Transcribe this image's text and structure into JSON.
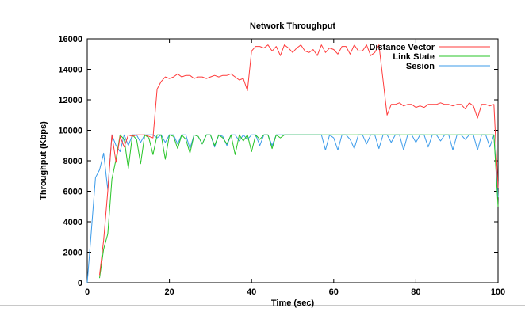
{
  "chart_data": {
    "type": "line",
    "title": "Network Throughput",
    "xlabel": "Time (sec)",
    "ylabel": "Throughput (Kbps)",
    "xlim": [
      0,
      100
    ],
    "ylim": [
      0,
      16000
    ],
    "xticks": [
      0,
      20,
      40,
      60,
      80,
      100
    ],
    "yticks": [
      0,
      2000,
      4000,
      6000,
      8000,
      10000,
      12000,
      14000,
      16000
    ],
    "grid": false,
    "legend_position": "top-right",
    "series": [
      {
        "name": "Distance Vector",
        "color": "#ff3b3b",
        "x": [
          3,
          4,
          5,
          6,
          7,
          8,
          9,
          10,
          11,
          12,
          13,
          14,
          15,
          16,
          17,
          18,
          19,
          20,
          21,
          22,
          23,
          24,
          25,
          26,
          27,
          28,
          29,
          30,
          31,
          32,
          33,
          34,
          35,
          36,
          37,
          38,
          39,
          40,
          41,
          42,
          43,
          44,
          45,
          46,
          47,
          48,
          49,
          50,
          51,
          52,
          53,
          54,
          55,
          56,
          57,
          58,
          59,
          60,
          61,
          62,
          63,
          64,
          65,
          66,
          67,
          68,
          69,
          70,
          71,
          72,
          73,
          74,
          75,
          76,
          77,
          78,
          79,
          80,
          81,
          82,
          83,
          84,
          85,
          86,
          87,
          88,
          89,
          90,
          91,
          92,
          93,
          94,
          95,
          96,
          97,
          98,
          99,
          100
        ],
        "y": [
          500,
          2800,
          6000,
          9700,
          7900,
          9600,
          8900,
          9700,
          9600,
          9700,
          9700,
          9700,
          9600,
          9500,
          12700,
          13200,
          13500,
          13400,
          13500,
          13700,
          13500,
          13600,
          13600,
          13400,
          13500,
          13500,
          13400,
          13500,
          13600,
          13500,
          13600,
          13600,
          13700,
          13500,
          13300,
          13400,
          12600,
          15200,
          15500,
          15500,
          15400,
          15600,
          15200,
          15500,
          14900,
          15600,
          15400,
          15100,
          15400,
          15600,
          15200,
          15100,
          15300,
          14900,
          15600,
          15100,
          15400,
          15300,
          15000,
          15500,
          15500,
          15000,
          15600,
          15200,
          15200,
          15600,
          14900,
          15100,
          15600,
          13300,
          11000,
          11700,
          11700,
          11800,
          11600,
          11700,
          11700,
          11500,
          11600,
          11500,
          11700,
          11700,
          11700,
          11800,
          11700,
          11700,
          11600,
          11700,
          11700,
          11400,
          11800,
          11600,
          10800,
          11700,
          11700,
          11600,
          11700,
          6200
        ]
      },
      {
        "name": "Link State",
        "color": "#27c427",
        "x": [
          3,
          4,
          5,
          6,
          7,
          8,
          9,
          10,
          11,
          12,
          13,
          14,
          15,
          16,
          17,
          18,
          19,
          20,
          21,
          22,
          23,
          24,
          25,
          26,
          27,
          28,
          29,
          30,
          31,
          32,
          33,
          34,
          35,
          36,
          37,
          38,
          39,
          40,
          41,
          42,
          43,
          44,
          45,
          46,
          47,
          48,
          49,
          50,
          51,
          52,
          53,
          54,
          55,
          56,
          57,
          58,
          59,
          60,
          61,
          62,
          63,
          64,
          65,
          66,
          67,
          68,
          69,
          70,
          71,
          72,
          73,
          74,
          75,
          76,
          77,
          78,
          79,
          80,
          81,
          82,
          83,
          84,
          85,
          86,
          87,
          88,
          89,
          90,
          91,
          92,
          93,
          94,
          95,
          96,
          97,
          98,
          99,
          100
        ],
        "y": [
          300,
          2200,
          3200,
          6800,
          8100,
          9700,
          9400,
          7500,
          9700,
          9400,
          7800,
          9700,
          9500,
          8400,
          9700,
          9700,
          8100,
          9700,
          9600,
          8800,
          9700,
          9400,
          8500,
          9700,
          9600,
          9100,
          9700,
          9700,
          9000,
          9700,
          9500,
          9100,
          9700,
          8400,
          9700,
          9300,
          9700,
          8600,
          9700,
          9400,
          9700,
          9700,
          8800,
          9700,
          9500,
          9700,
          9700,
          9700,
          9700,
          9700,
          9700,
          9700,
          9700,
          9700,
          9700,
          9700,
          9700,
          9700,
          9700,
          9700,
          9700,
          9700,
          9700,
          9700,
          9700,
          9700,
          9700,
          9700,
          9700,
          9700,
          9700,
          9700,
          9700,
          9700,
          9700,
          9700,
          9700,
          9700,
          9700,
          9700,
          9700,
          9700,
          9700,
          9700,
          9700,
          9700,
          9700,
          9700,
          9700,
          9700,
          9700,
          9700,
          9700,
          9700,
          9700,
          9700,
          9700,
          5000
        ]
      },
      {
        "name": "Sesion",
        "color": "#3b9bea",
        "x": [
          0,
          1,
          2,
          3,
          4,
          5,
          6,
          7,
          8,
          9,
          10,
          11,
          12,
          13,
          14,
          15,
          16,
          17,
          18,
          19,
          20,
          21,
          22,
          23,
          24,
          25,
          26,
          27,
          28,
          29,
          30,
          31,
          32,
          33,
          34,
          35,
          36,
          37,
          38,
          39,
          40,
          41,
          42,
          43,
          44,
          45,
          46,
          47,
          48,
          49,
          50,
          51,
          52,
          53,
          54,
          55,
          56,
          57,
          58,
          59,
          60,
          61,
          62,
          63,
          64,
          65,
          66,
          67,
          68,
          69,
          70,
          71,
          72,
          73,
          74,
          75,
          76,
          77,
          78,
          79,
          80,
          81,
          82,
          83,
          84,
          85,
          86,
          87,
          88,
          89,
          90,
          91,
          92,
          93,
          94,
          95,
          96,
          97,
          98,
          99,
          100
        ],
        "y": [
          0,
          3400,
          6900,
          7400,
          8500,
          6100,
          9700,
          9000,
          8600,
          9700,
          9000,
          9700,
          9700,
          9200,
          9700,
          9700,
          9700,
          9500,
          9700,
          9200,
          9700,
          9700,
          9100,
          9700,
          9700,
          8800,
          9700,
          9600,
          9100,
          9700,
          9700,
          8900,
          9700,
          9600,
          9000,
          9700,
          9700,
          9300,
          9700,
          9400,
          9700,
          9700,
          9000,
          9700,
          9700,
          9000,
          9700,
          9700,
          9700,
          9700,
          9700,
          9700,
          9700,
          9700,
          9700,
          9700,
          9700,
          9700,
          8700,
          9700,
          9500,
          8700,
          9700,
          9700,
          9400,
          8800,
          9700,
          9700,
          9100,
          9700,
          9700,
          8800,
          9700,
          9700,
          9200,
          9700,
          9700,
          8700,
          9700,
          9700,
          9200,
          9700,
          9700,
          8900,
          9700,
          9700,
          9300,
          9700,
          9700,
          8700,
          9700,
          9700,
          9400,
          9700,
          9700,
          8700,
          9700,
          9700,
          8900,
          9700,
          5600
        ]
      }
    ]
  }
}
